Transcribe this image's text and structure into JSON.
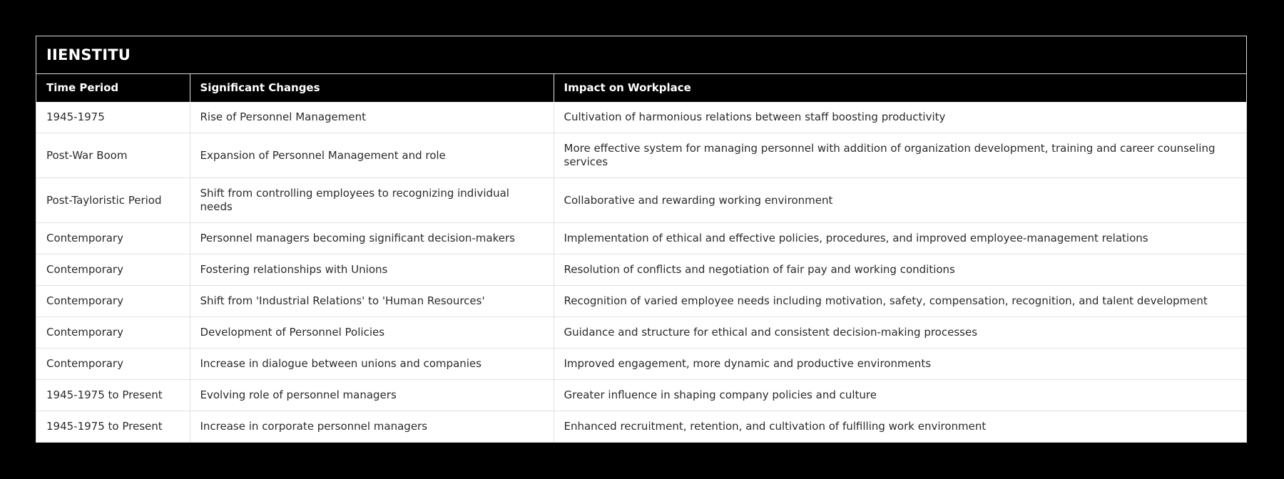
{
  "page": {
    "background_color": "#000000"
  },
  "colors": {
    "panel_border": "#d9d9d9",
    "title_bar_bg": "#000000",
    "title_text": "#ffffff",
    "header_row_bg": "#000000",
    "header_text": "#ffffff",
    "body_bg": "#ffffff",
    "body_text": "#2b2b2b",
    "divider": "#e2e2e5"
  },
  "chart_data": {
    "type": "table",
    "title": "IIENSTITU",
    "columns": [
      "Time Period",
      "Significant Changes",
      "Impact on Workplace"
    ],
    "rows": [
      [
        "1945-1975",
        "Rise of Personnel Management",
        "Cultivation of harmonious relations between staff boosting productivity"
      ],
      [
        "Post-War Boom",
        "Expansion of Personnel Management and role",
        "More effective system for managing personnel with addition of organization development, training and career counseling services"
      ],
      [
        "Post-Tayloristic Period",
        "Shift from controlling employees to recognizing individual needs",
        "Collaborative and rewarding working environment"
      ],
      [
        "Contemporary",
        "Personnel managers becoming significant decision-makers",
        "Implementation of ethical and effective policies, procedures, and improved employee-management relations"
      ],
      [
        "Contemporary",
        "Fostering relationships with Unions",
        "Resolution of conflicts and negotiation of fair pay and working conditions"
      ],
      [
        "Contemporary",
        "Shift from 'Industrial Relations' to 'Human Resources'",
        "Recognition of varied employee needs including motivation, safety, compensation, recognition, and talent development"
      ],
      [
        "Contemporary",
        "Development of Personnel Policies",
        "Guidance and structure for ethical and consistent decision-making processes"
      ],
      [
        "Contemporary",
        "Increase in dialogue between unions and companies",
        "Improved engagement, more dynamic and productive environments"
      ],
      [
        "1945-1975 to Present",
        "Evolving role of personnel managers",
        "Greater influence in shaping company policies and culture"
      ],
      [
        "1945-1975 to Present",
        "Increase in corporate personnel managers",
        "Enhanced recruitment, retention, and cultivation of fulfilling work environment"
      ]
    ]
  }
}
